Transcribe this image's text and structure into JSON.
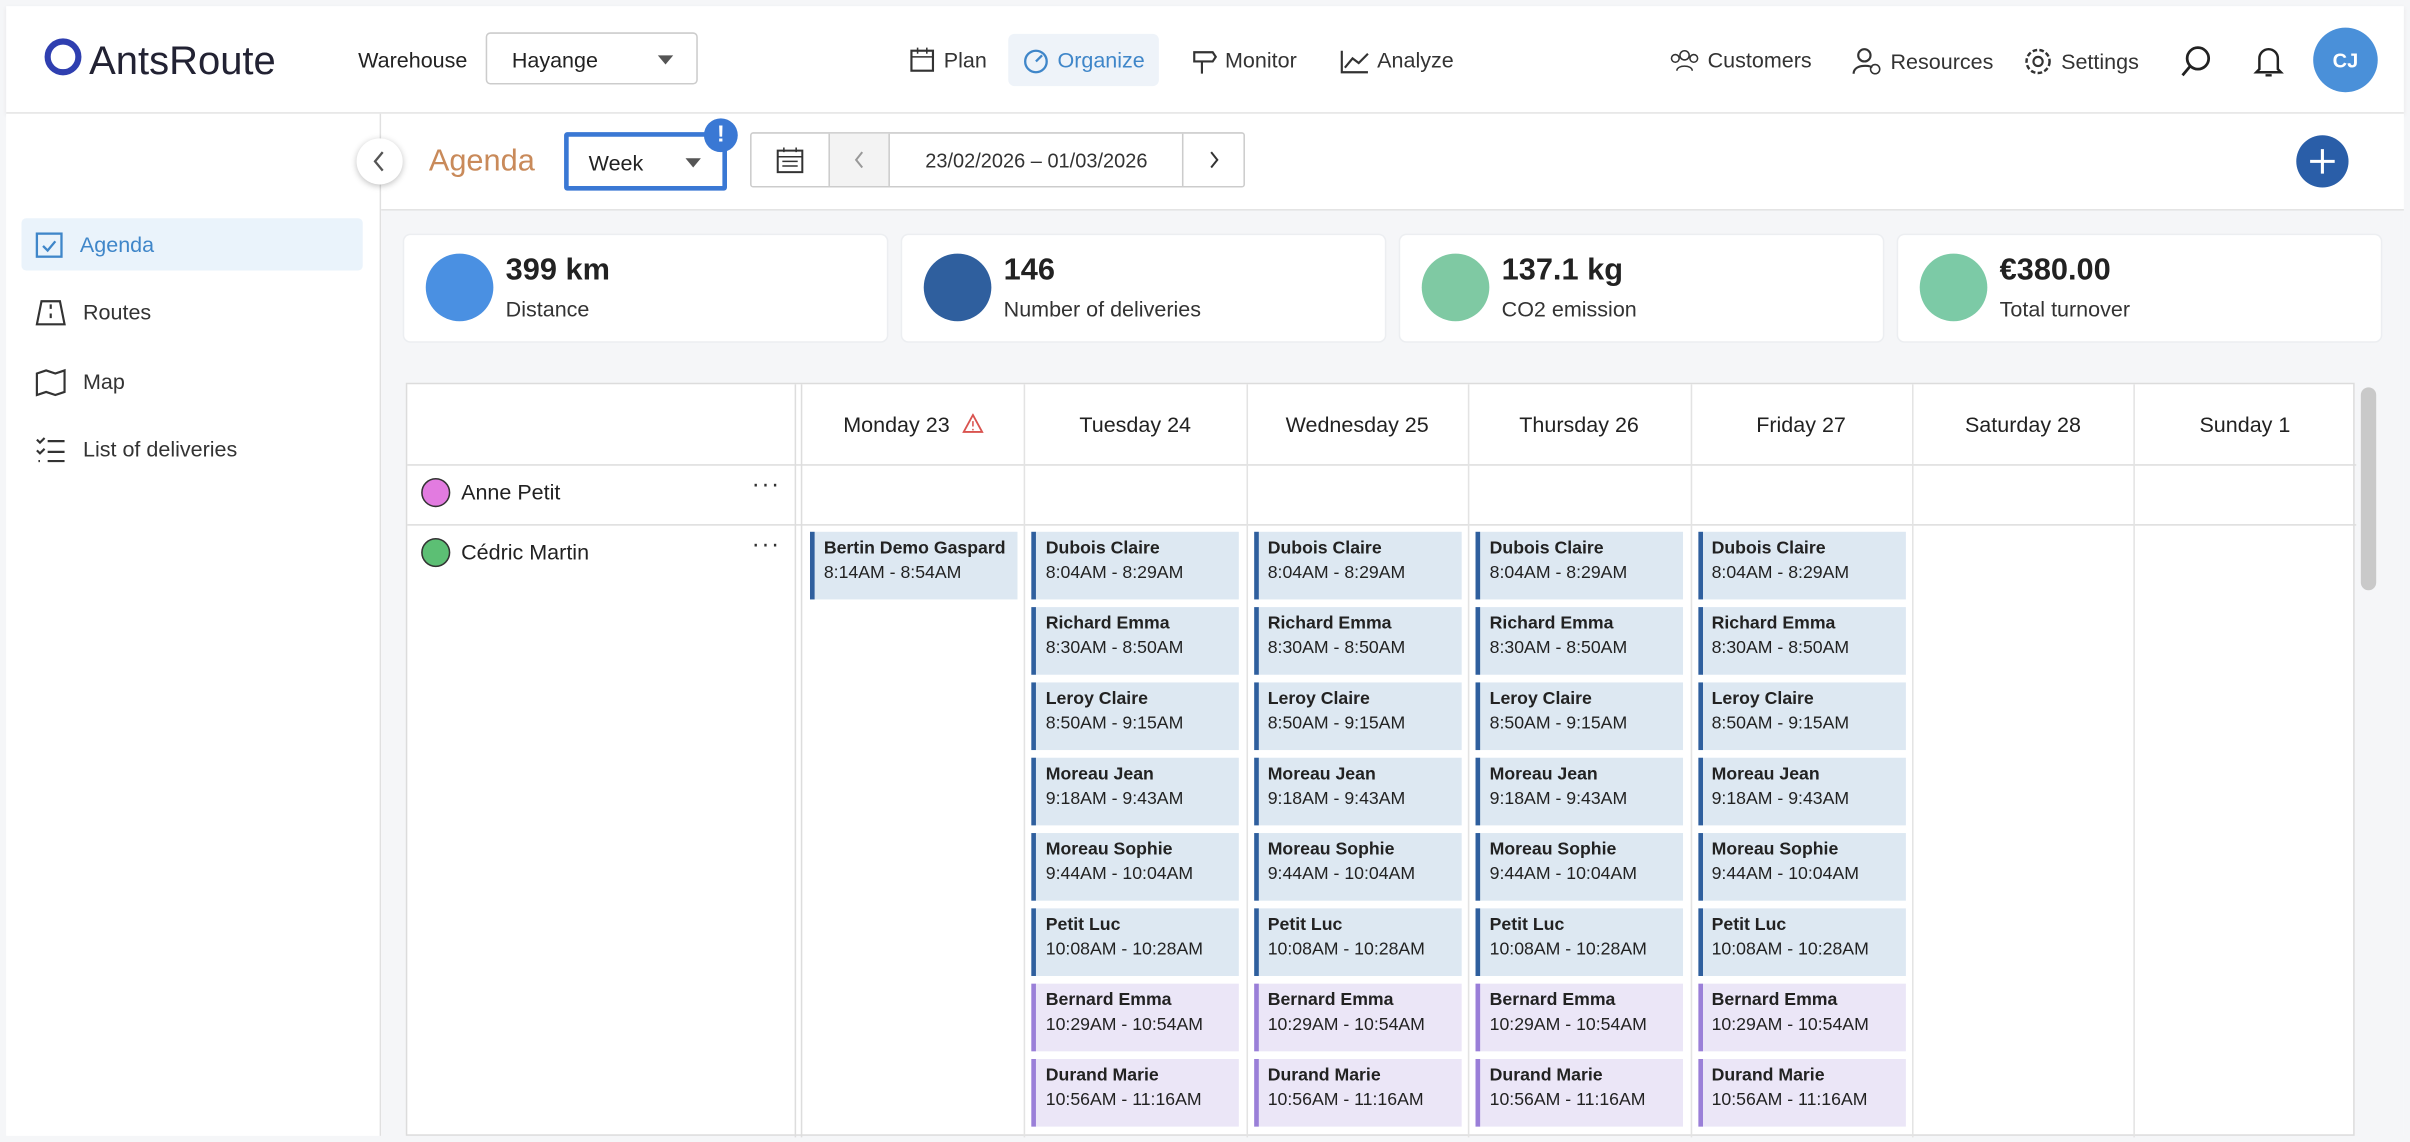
{
  "header": {
    "logo": "AntsRoute",
    "warehouse_label": "Warehouse",
    "warehouse": "Hayange",
    "nav": [
      "Plan",
      "Organize",
      "Monitor",
      "Analyze"
    ],
    "right_nav": [
      "Customers",
      "Resources",
      "Settings"
    ],
    "avatar": "CJ"
  },
  "sidebar": [
    "Agenda",
    "Routes",
    "Map",
    "List of deliveries"
  ],
  "toolbar": {
    "title": "Agenda",
    "view": "Week",
    "date_range": "23/02/2026 – 01/03/2026"
  },
  "stats": [
    {
      "value": "399 km",
      "label": "Distance",
      "color": "#4a90e2"
    },
    {
      "value": "146",
      "label": "Number of deliveries",
      "color": "#2f5f9e"
    },
    {
      "value": "137.1 kg",
      "label": "CO2 emission",
      "color": "#7fc9a3"
    },
    {
      "value": "€380.00",
      "label": "Total turnover",
      "color": "#7ccaa6"
    }
  ],
  "calendar": {
    "days": [
      "Monday 23",
      "Tuesday 24",
      "Wednesday 25",
      "Thursday 26",
      "Friday 27",
      "Saturday 28",
      "Sunday 1"
    ],
    "resources": [
      {
        "name": "Anne Petit",
        "color": "#e27be0"
      },
      {
        "name": "Cédric Martin",
        "color": "#5cbf74"
      }
    ],
    "events": [
      [
        {
          "name": "Bertin Demo Gaspard",
          "time": "8:14AM - 8:54AM",
          "color": "#2f5f9e"
        }
      ],
      [
        {
          "name": "Dubois Claire",
          "time": "8:04AM - 8:29AM",
          "color": "#2f5f9e"
        },
        {
          "name": "Richard Emma",
          "time": "8:30AM - 8:50AM",
          "color": "#2f5f9e"
        },
        {
          "name": "Leroy Claire",
          "time": "8:50AM - 9:15AM",
          "color": "#2f5f9e"
        },
        {
          "name": "Moreau Jean",
          "time": "9:18AM - 9:43AM",
          "color": "#2f5f9e"
        },
        {
          "name": "Moreau Sophie",
          "time": "9:44AM - 10:04AM",
          "color": "#2f5f9e"
        },
        {
          "name": "Petit Luc",
          "time": "10:08AM - 10:28AM",
          "color": "#2f5f9e"
        },
        {
          "name": "Bernard Emma",
          "time": "10:29AM - 10:54AM",
          "color": "#9a7fd8"
        },
        {
          "name": "Durand Marie",
          "time": "10:56AM - 11:16AM",
          "color": "#9a7fd8"
        }
      ],
      [
        {
          "name": "Dubois Claire",
          "time": "8:04AM - 8:29AM",
          "color": "#2f5f9e"
        },
        {
          "name": "Richard Emma",
          "time": "8:30AM - 8:50AM",
          "color": "#2f5f9e"
        },
        {
          "name": "Leroy Claire",
          "time": "8:50AM - 9:15AM",
          "color": "#2f5f9e"
        },
        {
          "name": "Moreau Jean",
          "time": "9:18AM - 9:43AM",
          "color": "#2f5f9e"
        },
        {
          "name": "Moreau Sophie",
          "time": "9:44AM - 10:04AM",
          "color": "#2f5f9e"
        },
        {
          "name": "Petit Luc",
          "time": "10:08AM - 10:28AM",
          "color": "#2f5f9e"
        },
        {
          "name": "Bernard Emma",
          "time": "10:29AM - 10:54AM",
          "color": "#9a7fd8"
        },
        {
          "name": "Durand Marie",
          "time": "10:56AM - 11:16AM",
          "color": "#9a7fd8"
        }
      ],
      [
        {
          "name": "Dubois Claire",
          "time": "8:04AM - 8:29AM",
          "color": "#2f5f9e"
        },
        {
          "name": "Richard Emma",
          "time": "8:30AM - 8:50AM",
          "color": "#2f5f9e"
        },
        {
          "name": "Leroy Claire",
          "time": "8:50AM - 9:15AM",
          "color": "#2f5f9e"
        },
        {
          "name": "Moreau Jean",
          "time": "9:18AM - 9:43AM",
          "color": "#2f5f9e"
        },
        {
          "name": "Moreau Sophie",
          "time": "9:44AM - 10:04AM",
          "color": "#2f5f9e"
        },
        {
          "name": "Petit Luc",
          "time": "10:08AM - 10:28AM",
          "color": "#2f5f9e"
        },
        {
          "name": "Bernard Emma",
          "time": "10:29AM - 10:54AM",
          "color": "#9a7fd8"
        },
        {
          "name": "Durand Marie",
          "time": "10:56AM - 11:16AM",
          "color": "#9a7fd8"
        }
      ],
      [
        {
          "name": "Dubois Claire",
          "time": "8:04AM - 8:29AM",
          "color": "#2f5f9e"
        },
        {
          "name": "Richard Emma",
          "time": "8:30AM - 8:50AM",
          "color": "#2f5f9e"
        },
        {
          "name": "Leroy Claire",
          "time": "8:50AM - 9:15AM",
          "color": "#2f5f9e"
        },
        {
          "name": "Moreau Jean",
          "time": "9:18AM - 9:43AM",
          "color": "#2f5f9e"
        },
        {
          "name": "Moreau Sophie",
          "time": "9:44AM - 10:04AM",
          "color": "#2f5f9e"
        },
        {
          "name": "Petit Luc",
          "time": "10:08AM - 10:28AM",
          "color": "#2f5f9e"
        },
        {
          "name": "Bernard Emma",
          "time": "10:29AM - 10:54AM",
          "color": "#9a7fd8"
        },
        {
          "name": "Durand Marie",
          "time": "10:56AM - 11:16AM",
          "color": "#9a7fd8"
        }
      ],
      [],
      []
    ]
  }
}
